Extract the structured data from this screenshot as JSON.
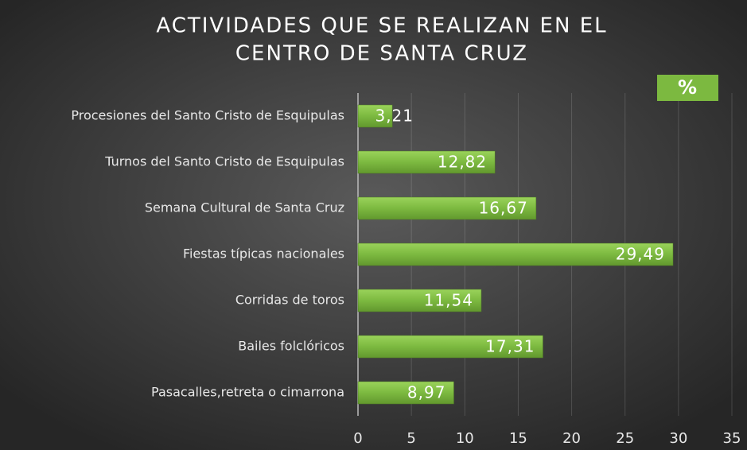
{
  "chart_data": {
    "type": "bar",
    "orientation": "horizontal",
    "title": [
      "ACTIVIDADES QUE SE REALIZAN EN EL",
      "CENTRO DE SANTA CRUZ"
    ],
    "categories": [
      "Procesiones del Santo Cristo de Esquipulas",
      "Turnos del Santo Cristo de Esquipulas",
      "Semana Cultural de Santa Cruz",
      "Fiestas típicas nacionales",
      "Corridas de toros",
      "Bailes folclóricos",
      "Pasacalles,retreta o cimarrona"
    ],
    "series": [
      {
        "name": "%",
        "color": "#7cb940",
        "values": [
          3.21,
          12.82,
          16.67,
          29.49,
          11.54,
          17.31,
          8.97
        ],
        "value_labels": [
          "3,21",
          "12,82",
          "16,67",
          "29,49",
          "11,54",
          "17,31",
          "8,97"
        ]
      }
    ],
    "xlim": [
      0,
      35
    ],
    "xticks": [
      0,
      5,
      10,
      15,
      20,
      25,
      30,
      35
    ],
    "grid": true,
    "legend": "top-right"
  }
}
